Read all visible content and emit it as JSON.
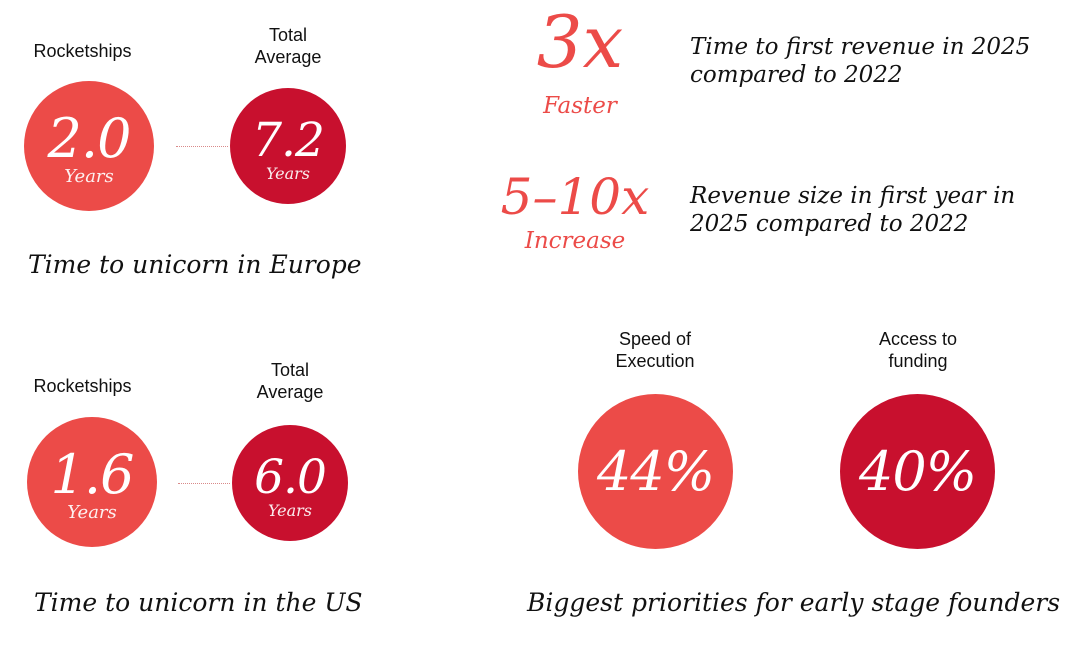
{
  "colors": {
    "light_red": "#EC4B48",
    "dark_red": "#C8102E",
    "text": "#111111"
  },
  "europe": {
    "left_label": "Rocketships",
    "right_label": "Total\nAverage",
    "left_value": "2.0",
    "left_unit": "Years",
    "right_value": "7.2",
    "right_unit": "Years",
    "caption": "Time to unicorn in Europe"
  },
  "us": {
    "left_label": "Rocketships",
    "right_label": "Total\nAverage",
    "left_value": "1.6",
    "left_unit": "Years",
    "right_value": "6.0",
    "right_unit": "Years",
    "caption": "Time to unicorn in the US"
  },
  "stats": [
    {
      "value": "3x",
      "sub": "Faster",
      "desc": "Time to first revenue in 2025\ncompared to 2022"
    },
    {
      "value": "5–10x",
      "sub": "Increase",
      "desc": "Revenue size in first year in\n2025 compared to 2022"
    }
  ],
  "priorities": {
    "items": [
      {
        "label": "Speed of\nExecution",
        "value": "44%"
      },
      {
        "label": "Access to\nfunding",
        "value": "40%"
      }
    ],
    "caption": "Biggest priorities for early stage founders"
  }
}
